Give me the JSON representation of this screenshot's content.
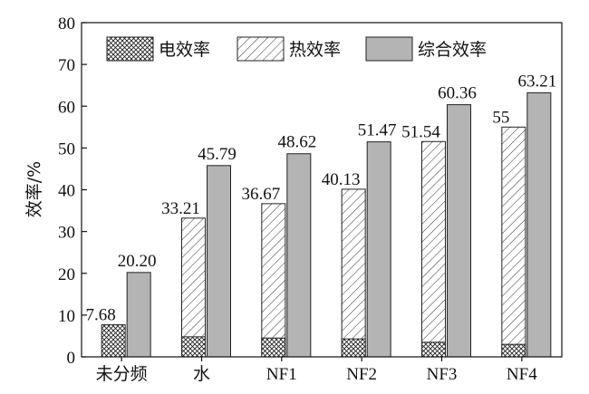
{
  "chart_data": {
    "type": "bar",
    "categories": [
      "未分频",
      "水",
      "NF1",
      "NF2",
      "NF3",
      "NF4"
    ],
    "series": [
      {
        "name": "电效率",
        "pattern": "crosshatch",
        "values": [
          7.68,
          4.8,
          4.5,
          4.3,
          3.5,
          3.0
        ]
      },
      {
        "name": "热效率",
        "pattern": "diagonal",
        "values": [
          null,
          33.21,
          36.67,
          40.13,
          51.54,
          55
        ]
      },
      {
        "name": "综合效率",
        "color": "#b4b4b4",
        "values": [
          20.2,
          45.79,
          48.62,
          51.47,
          60.36,
          63.21
        ]
      }
    ],
    "data_labels": {
      "first_bar": [
        "7.68",
        "33.21",
        "36.67",
        "40.13",
        "51.54",
        "55"
      ],
      "combined": [
        "20.20",
        "45.79",
        "48.62",
        "51.47",
        "60.36",
        "63.21"
      ]
    },
    "ylabel": "效率/%",
    "ylim": [
      0,
      80
    ],
    "yticks": [
      0,
      10,
      20,
      30,
      40,
      50,
      60,
      70,
      80
    ],
    "grid": false,
    "legend_position": "top"
  }
}
